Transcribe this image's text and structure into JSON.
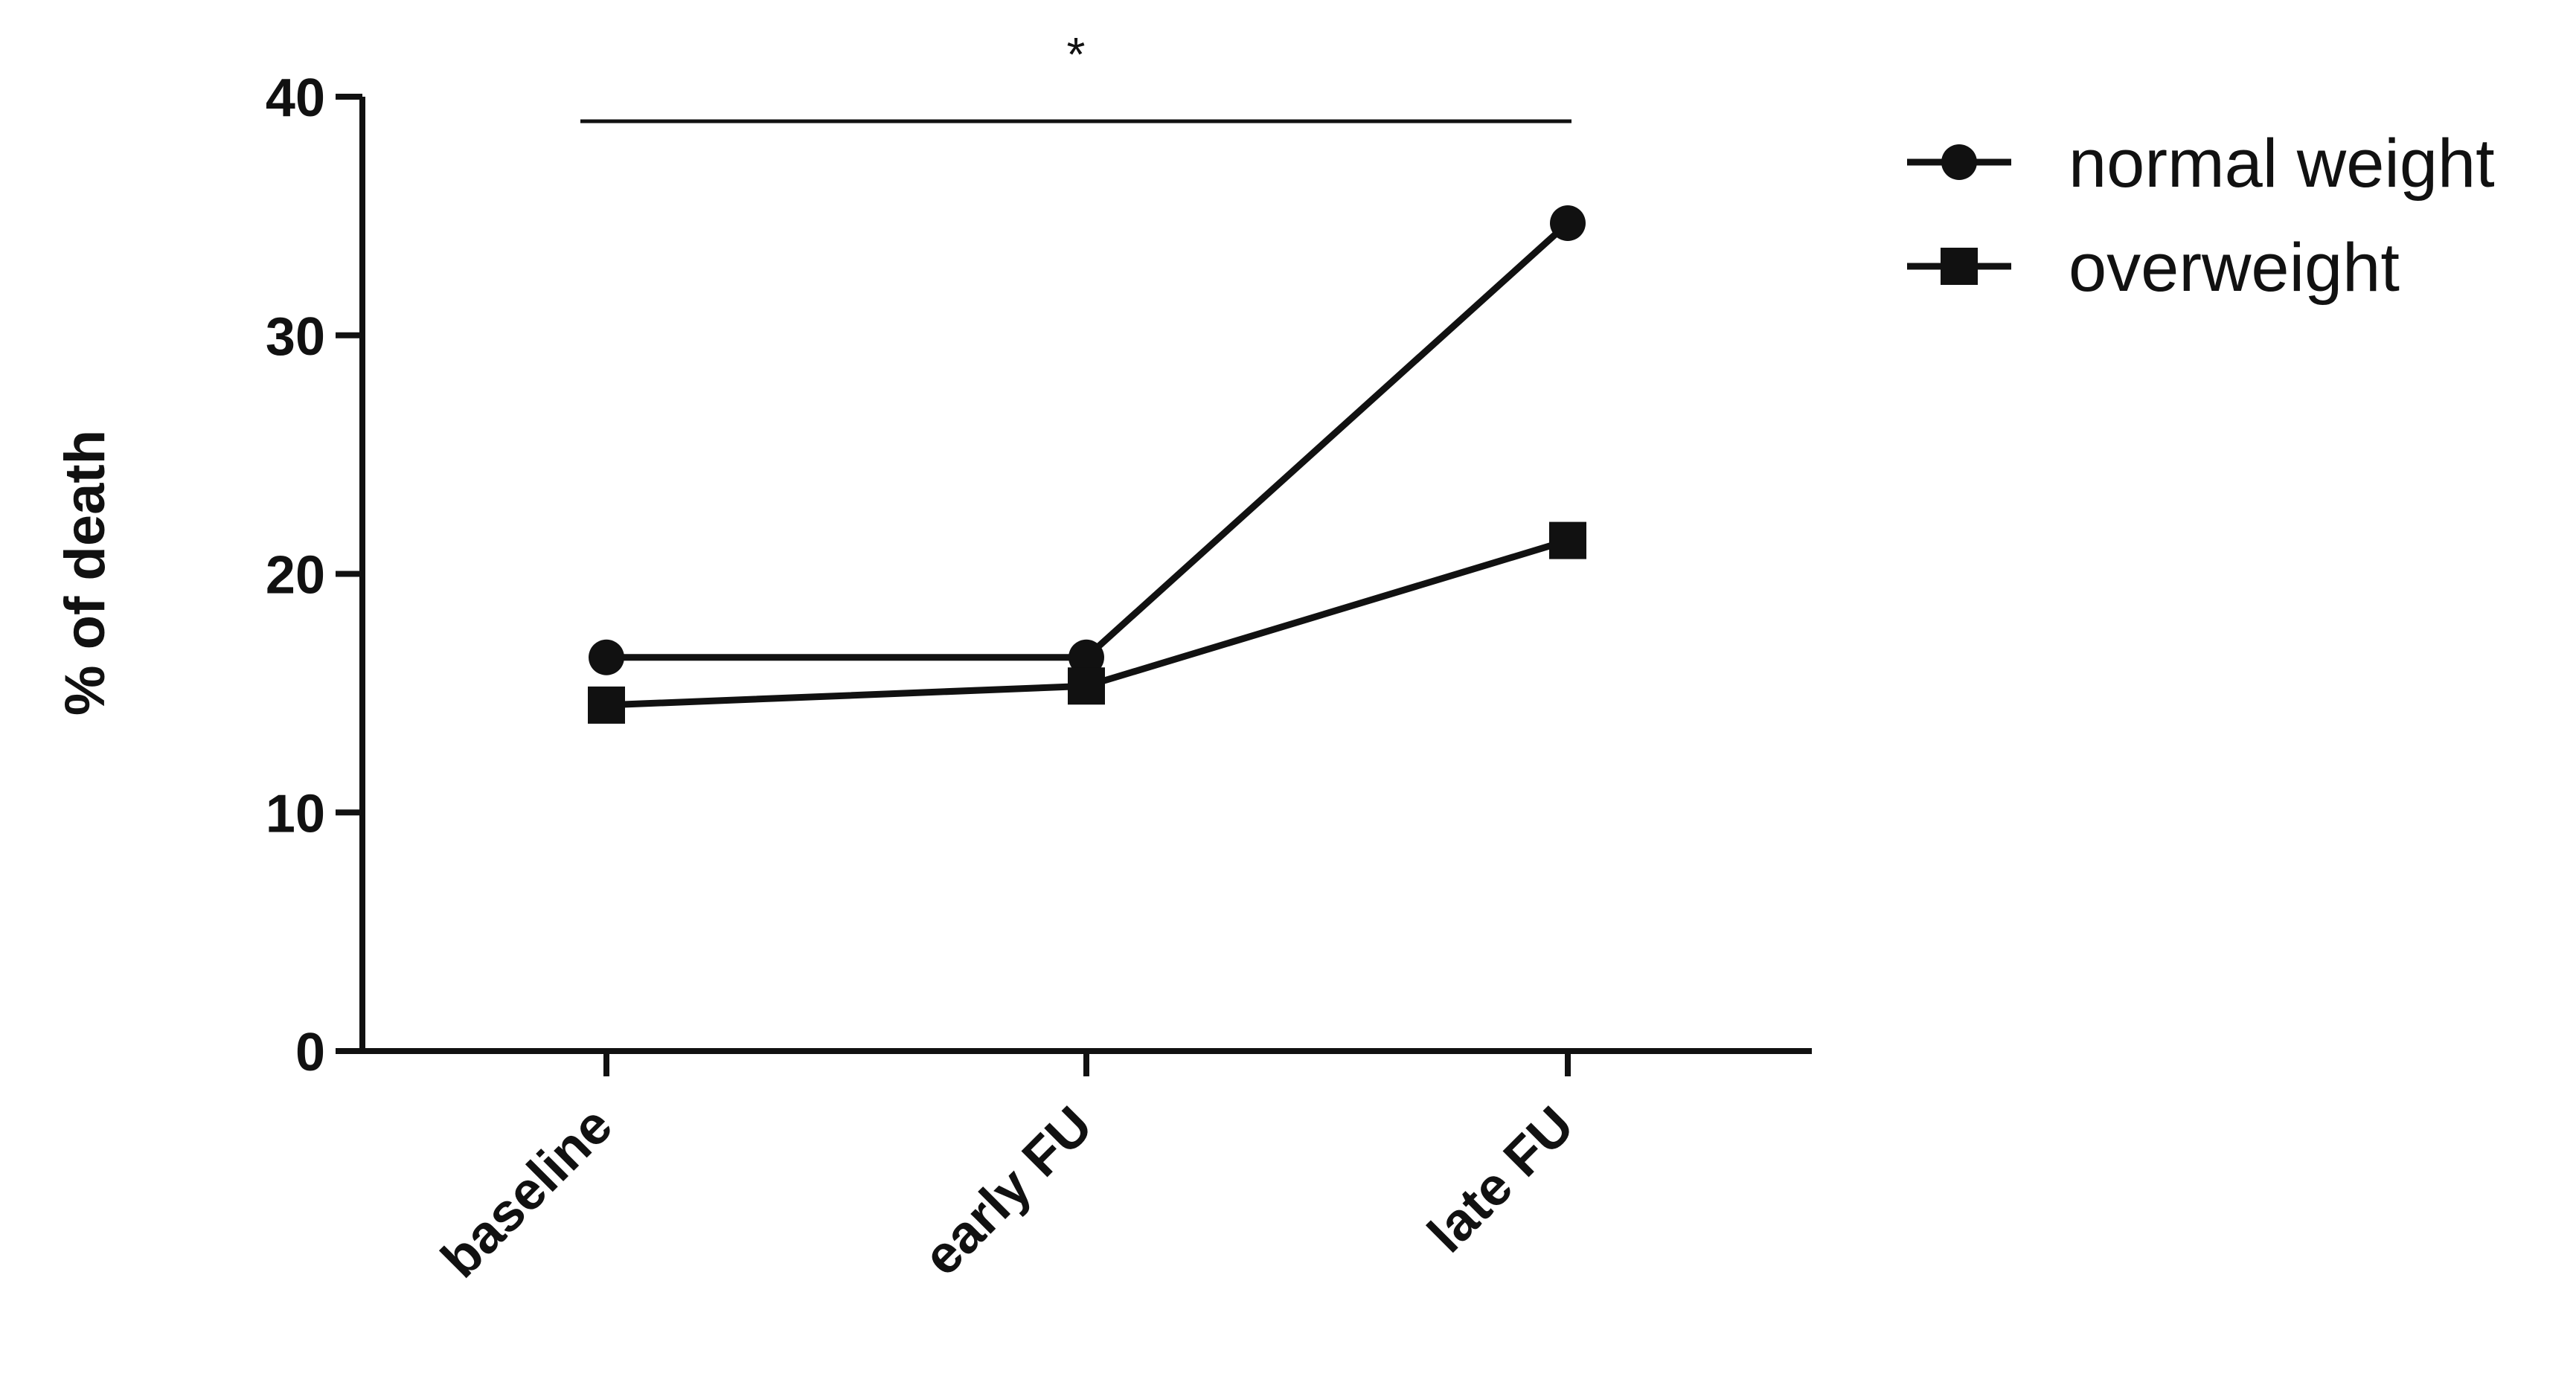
{
  "chart_data": {
    "type": "line",
    "categories": [
      "baseline",
      "early FU",
      "late FU"
    ],
    "series": [
      {
        "name": "normal weight",
        "marker": "circle",
        "values": [
          16.5,
          16.5,
          34.7
        ]
      },
      {
        "name": "overweight",
        "marker": "square",
        "values": [
          14.5,
          15.3,
          21.4
        ]
      }
    ],
    "ylabel": "% of death",
    "xlabel": "",
    "ylim": [
      0,
      40
    ],
    "yticks": [
      0,
      10,
      20,
      30,
      40
    ],
    "grid": false,
    "legend_position": "top-right",
    "annotation": {
      "text": "*",
      "from_category": "baseline",
      "to_category": "late FU"
    },
    "colors": {
      "line": "#111111",
      "marker": "#111111"
    }
  }
}
